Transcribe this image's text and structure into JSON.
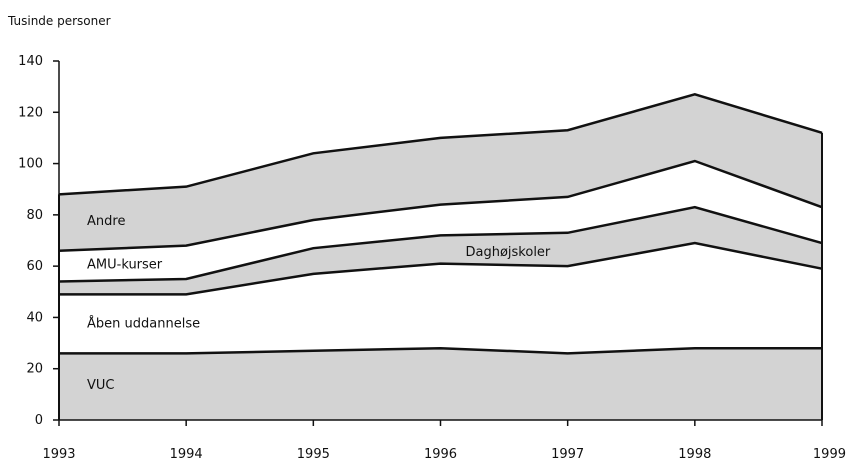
{
  "chart_data": {
    "type": "area",
    "stacked": true,
    "unit_label": "Tusinde personer",
    "x": [
      "1993",
      "1994",
      "1995",
      "1996",
      "1997",
      "1998",
      "1999"
    ],
    "ylim": [
      0,
      140
    ],
    "yticks": [
      0,
      20,
      40,
      60,
      80,
      100,
      120,
      140
    ],
    "grid": false,
    "legend": "inline labels",
    "series": [
      {
        "name": "VUC",
        "values": [
          26,
          26,
          27,
          28,
          26,
          28,
          28
        ],
        "fill": "#d3d3d3"
      },
      {
        "name": "Åben uddannelse",
        "values": [
          23,
          23,
          30,
          33,
          34,
          41,
          31
        ],
        "fill": "#ffffff"
      },
      {
        "name": "Daghøjskoler",
        "values": [
          5,
          6,
          10,
          11,
          13,
          14,
          10
        ],
        "fill": "#d3d3d3"
      },
      {
        "name": "AMU-kurser",
        "values": [
          12,
          13,
          11,
          12,
          14,
          18,
          14
        ],
        "fill": "#ffffff"
      },
      {
        "name": "Andre",
        "values": [
          22,
          23,
          26,
          26,
          26,
          26,
          29
        ],
        "fill": "#d3d3d3"
      }
    ]
  }
}
